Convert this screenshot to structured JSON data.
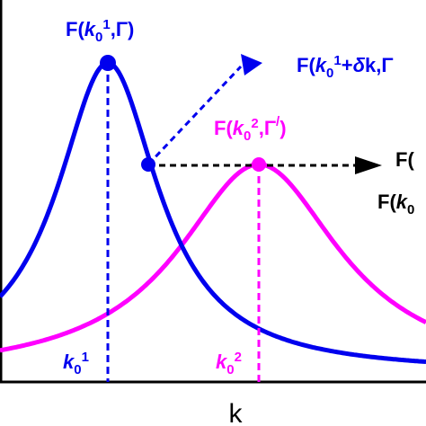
{
  "labels": {
    "peak1": [
      "F(",
      "k",
      "0",
      "1",
      ",Γ)"
    ],
    "shifted1": [
      "F(",
      "k",
      "0",
      "1",
      "+",
      "δ",
      "k,Γ"
    ],
    "peak2": [
      "F(",
      "k",
      "0",
      "2",
      ",Γ",
      "/",
      ")"
    ],
    "right_top": [
      "F("
    ],
    "right_bottom": [
      "F(",
      "k",
      "0"
    ],
    "k01": [
      "k",
      "0",
      "1"
    ],
    "k02": [
      "k",
      "0",
      "2"
    ],
    "axis": "k"
  }
}
